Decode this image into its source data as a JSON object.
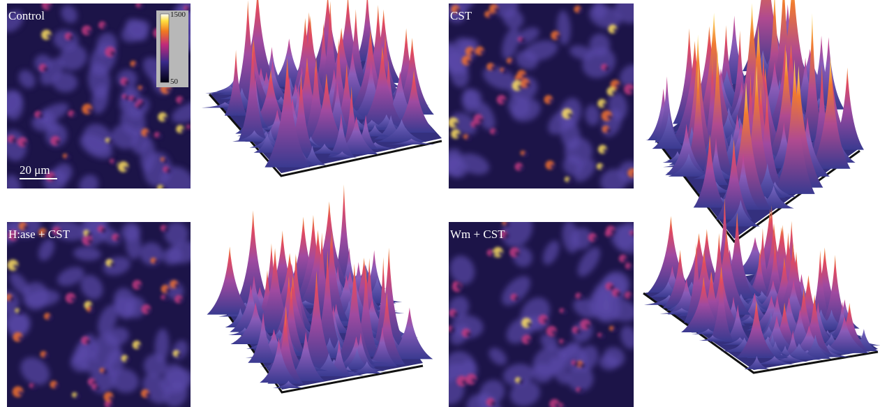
{
  "panels": [
    {
      "label": "Control"
    },
    {
      "label": "CST"
    },
    {
      "label": "H:ase + CST"
    },
    {
      "label": "Wm + CST"
    }
  ],
  "colorbar": {
    "max_label": "1500",
    "min_label": "50"
  },
  "scale_bar": {
    "label": "20 μm"
  }
}
